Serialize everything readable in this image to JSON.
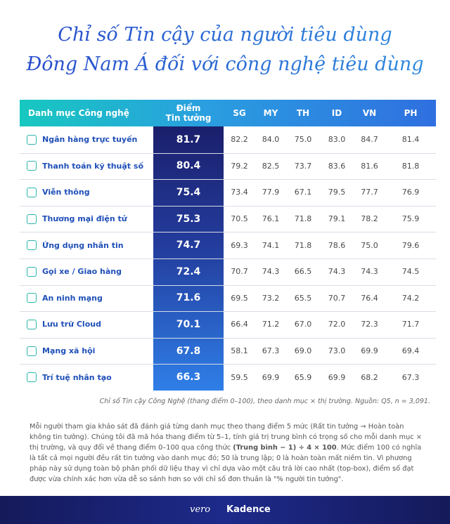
{
  "header": {
    "title_lines": [
      "Chỉ số Tin cậy của người tiêu dùng",
      "Đông Nam Á đối với công nghệ tiêu dùng"
    ]
  },
  "table": {
    "columns": [
      "Danh mục Công nghệ",
      "Điểm\nTin tưởng",
      "SG",
      "MY",
      "TH",
      "ID",
      "VN",
      "PH"
    ],
    "rows": [
      [
        "Ngân hàng trực tuyến",
        "81.7",
        "82.2",
        "84.0",
        "75.0",
        "83.0",
        "84.7",
        "81.4"
      ],
      [
        "Thanh toán kỹ thuật số",
        "80.4",
        "79.2",
        "82.5",
        "73.7",
        "83.6",
        "81.6",
        "81.8"
      ],
      [
        "Viễn thông",
        "75.4",
        "73.4",
        "77.9",
        "67.1",
        "79.5",
        "77.7",
        "76.9"
      ],
      [
        "Thương mại điện tử",
        "75.3",
        "70.5",
        "76.1",
        "71.8",
        "79.1",
        "78.2",
        "75.9"
      ],
      [
        "Ứng dụng nhắn tin",
        "74.7",
        "69.3",
        "74.1",
        "71.8",
        "78.6",
        "75.0",
        "79.6"
      ],
      [
        "Gọi xe / Giao hàng",
        "72.4",
        "70.7",
        "74.3",
        "66.5",
        "74.3",
        "74.3",
        "74.5"
      ],
      [
        "An ninh mạng",
        "71.6",
        "69.5",
        "73.2",
        "65.5",
        "70.7",
        "76.4",
        "74.2"
      ],
      [
        "Lưu trữ Cloud",
        "70.1",
        "66.4",
        "71.2",
        "67.0",
        "72.0",
        "72.3",
        "71.7"
      ],
      [
        "Mạng xã hội",
        "67.8",
        "58.1",
        "67.3",
        "69.0",
        "73.0",
        "69.9",
        "69.4"
      ],
      [
        "Trí tuệ nhân tạo",
        "66.3",
        "59.5",
        "69.9",
        "65.9",
        "69.9",
        "68.2",
        "67.3"
      ]
    ],
    "caption": "Chỉ số Tin cậy Công Nghệ (thang điểm 0–100), theo danh mục × thị trường. Nguồn: Q5, n = 3,091."
  },
  "paragraph": {
    "before": "Mỗi người tham gia khảo sát đã đánh giá từng danh mục theo thang điểm 5 mức (Rất tin tưởng → Hoàn toàn không tin tưởng). Chúng tôi đã mã hóa thang điểm từ 5–1, tính giá trị trung bình có trọng số cho mỗi danh mục × thị trường, và quy đổi về thang điểm 0–100 qua công thức ",
    "bold": "(Trung bình − 1) ÷ 4 × 100",
    "after": ". Mức điểm 100 có nghĩa là tất cả mọi người đều rất tin tưởng vào danh mục đó; 50 là trung lập; 0 là hoàn toàn mất niềm tin. Vì phương pháp này sử dụng toàn bộ phân phối dữ liệu thay vì chỉ dựa vào một câu trả lời cao nhất (top-box), điểm số đạt được vừa chính xác hơn vừa dễ so sánh hơn so với chỉ số đơn thuần là \"% người tin tưởng\"."
  },
  "footer": {
    "logos": [
      "vero",
      "Kadence"
    ]
  }
}
